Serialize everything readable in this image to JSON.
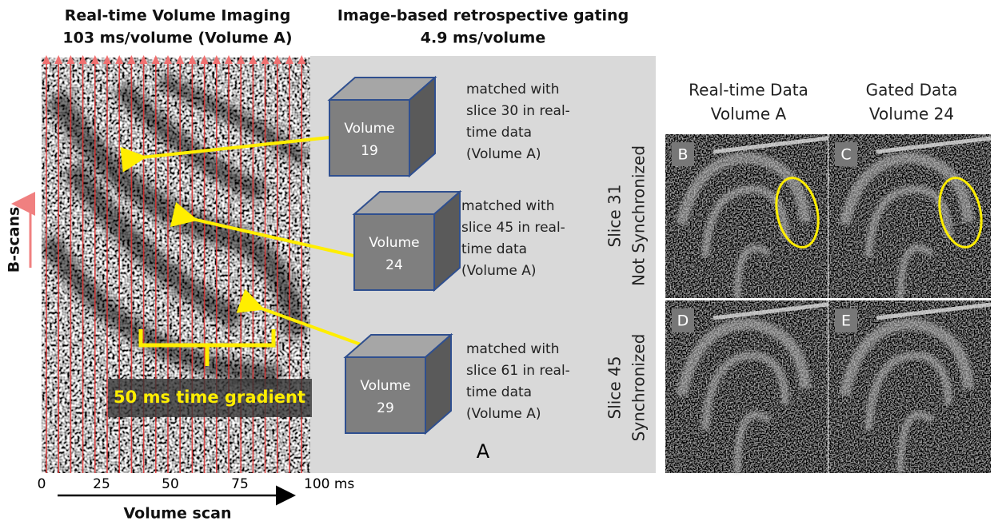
{
  "left_panel": {
    "title": [
      "Real-time Volume Imaging",
      "103 ms/volume (Volume A)"
    ],
    "y_label": "B-scans",
    "x_ticks": [
      "0",
      "25",
      "50",
      "75",
      "100 ms"
    ],
    "x_label": "Volume scan",
    "annotation": "50 ms time gradient"
  },
  "middle_panel": {
    "title": [
      "Image-based retrospective gating",
      "4.9 ms/volume"
    ],
    "volumes": [
      {
        "label": [
          "Volume",
          "19"
        ],
        "description": [
          "matched with",
          "slice 30 in real-",
          "time data",
          "(Volume A)"
        ]
      },
      {
        "label": [
          "Volume",
          "24"
        ],
        "description": [
          "matched with",
          "slice 45 in real-",
          "time data",
          "(Volume A)"
        ]
      },
      {
        "label": [
          "Volume",
          "29"
        ],
        "description": [
          "matched with",
          "slice 61 in real-",
          "time data",
          "(Volume A)"
        ]
      }
    ],
    "panel_label": "A"
  },
  "right_panel": {
    "columns": [
      [
        "Real-time Data",
        "Volume A"
      ],
      [
        "Gated Data",
        "Volume 24"
      ]
    ],
    "rows": [
      [
        "Slice 31",
        "Not Synchronized"
      ],
      [
        "Slice 45",
        "Synchronized"
      ]
    ],
    "panels": [
      "B",
      "C",
      "D",
      "E"
    ]
  }
}
